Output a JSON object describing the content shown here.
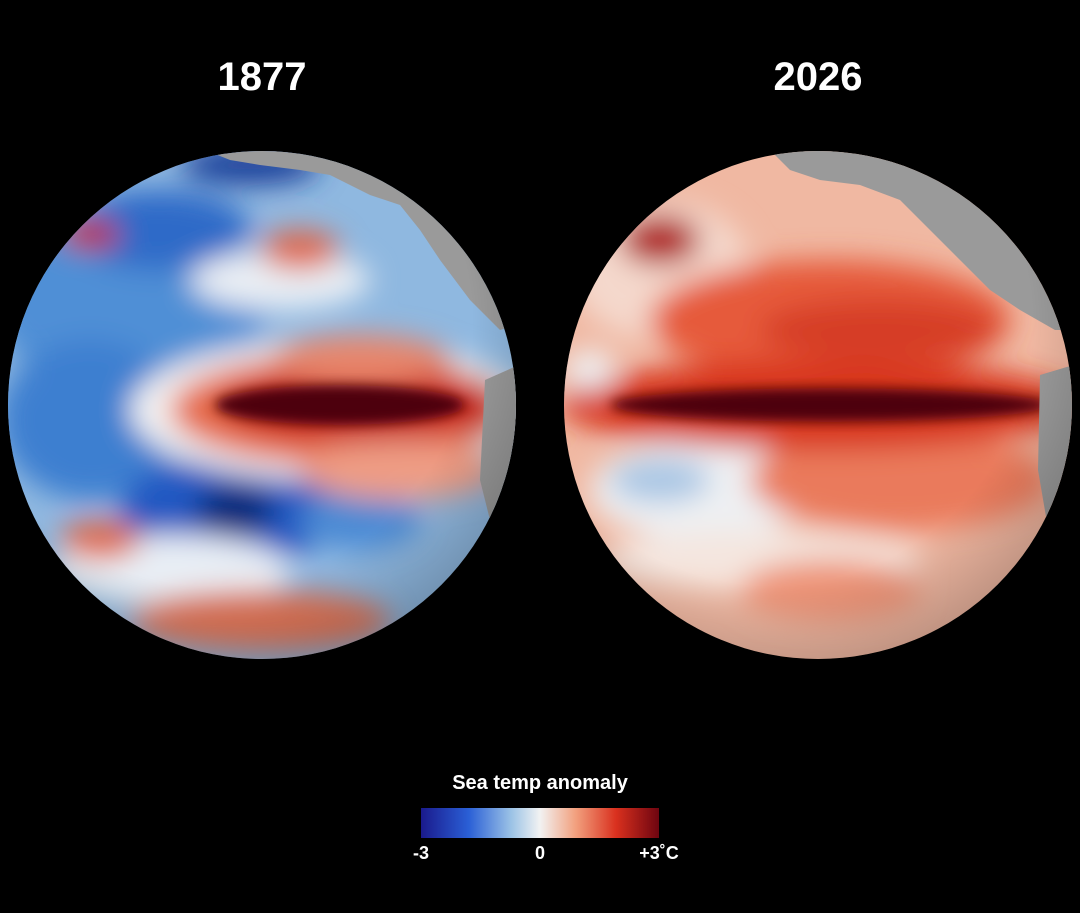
{
  "panels": [
    {
      "title": "1877"
    },
    {
      "title": "2026"
    }
  ],
  "legend": {
    "title": "Sea temp anomaly",
    "labels": [
      "-3",
      "0",
      "+3˚C"
    ]
  }
}
